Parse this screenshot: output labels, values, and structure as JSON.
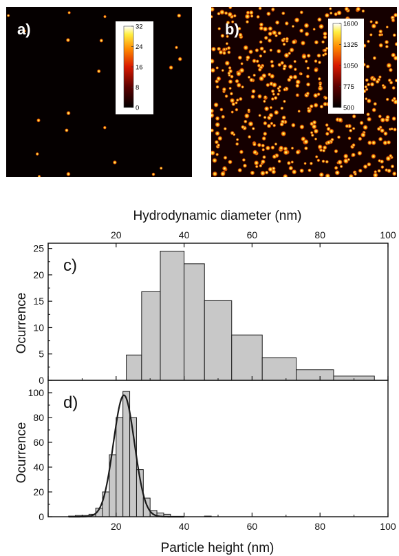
{
  "image_a": {
    "label": "a)",
    "colorbar_ticks": [
      "32",
      "24",
      "16",
      "8",
      "0"
    ],
    "colorbar_min": 0,
    "colorbar_max": 32,
    "spot_count": 22
  },
  "image_b": {
    "label": "b)",
    "colorbar_ticks": [
      "1600",
      "1325",
      "1050",
      "775",
      "500"
    ],
    "colorbar_min": 500,
    "colorbar_max": 1600,
    "spot_count": 520
  },
  "chart_data": [
    {
      "type": "bar",
      "panel_label": "c)",
      "title": "",
      "xlabel": "Hydrodynamic diameter (nm)",
      "ylabel": "Ocurrence",
      "xlim": [
        0,
        100
      ],
      "ylim": [
        0,
        26
      ],
      "xticks": [
        20,
        40,
        60,
        80,
        100
      ],
      "yticks": [
        0,
        5,
        10,
        15,
        20,
        25
      ],
      "bins": [
        {
          "x0": 23,
          "x1": 27.5,
          "value": 4.8
        },
        {
          "x0": 27.5,
          "x1": 33,
          "value": 16.8
        },
        {
          "x0": 33,
          "x1": 40,
          "value": 24.5
        },
        {
          "x0": 40,
          "x1": 46,
          "value": 22.1
        },
        {
          "x0": 46,
          "x1": 54,
          "value": 15.1
        },
        {
          "x0": 54,
          "x1": 63,
          "value": 8.6
        },
        {
          "x0": 63,
          "x1": 73,
          "value": 4.3
        },
        {
          "x0": 73,
          "x1": 84,
          "value": 2.0
        },
        {
          "x0": 84,
          "x1": 96,
          "value": 0.8
        }
      ],
      "bar_color": "#c8c8c8",
      "edge_color": "#1a1a1a",
      "grid": false
    },
    {
      "type": "bar",
      "panel_label": "d)",
      "title": "",
      "xlabel": "Particle height (nm)",
      "ylabel": "Ocurrence",
      "xlim": [
        0,
        100
      ],
      "ylim": [
        0,
        110
      ],
      "xticks": [
        20,
        40,
        60,
        80,
        100
      ],
      "yticks": [
        0,
        20,
        40,
        60,
        80,
        100
      ],
      "bins": [
        {
          "x0": 6,
          "x1": 8,
          "value": 0.5
        },
        {
          "x0": 8,
          "x1": 10,
          "value": 1
        },
        {
          "x0": 10,
          "x1": 12,
          "value": 1
        },
        {
          "x0": 12,
          "x1": 14,
          "value": 2
        },
        {
          "x0": 14,
          "x1": 16,
          "value": 7
        },
        {
          "x0": 16,
          "x1": 18,
          "value": 20
        },
        {
          "x0": 18,
          "x1": 20,
          "value": 50
        },
        {
          "x0": 20,
          "x1": 22,
          "value": 80
        },
        {
          "x0": 22,
          "x1": 24,
          "value": 101
        },
        {
          "x0": 24,
          "x1": 26,
          "value": 80
        },
        {
          "x0": 26,
          "x1": 28,
          "value": 38
        },
        {
          "x0": 28,
          "x1": 30,
          "value": 15
        },
        {
          "x0": 30,
          "x1": 32,
          "value": 5
        },
        {
          "x0": 32,
          "x1": 34,
          "value": 3
        },
        {
          "x0": 34,
          "x1": 36,
          "value": 2
        },
        {
          "x0": 46,
          "x1": 48,
          "value": 0.5
        }
      ],
      "fit": {
        "type": "gaussian",
        "amplitude": 98,
        "center": 22.3,
        "sigma": 3.1
      },
      "bar_color": "#c8c8c8",
      "edge_color": "#1a1a1a",
      "fit_color": "#1a1a1a",
      "grid": false
    }
  ]
}
